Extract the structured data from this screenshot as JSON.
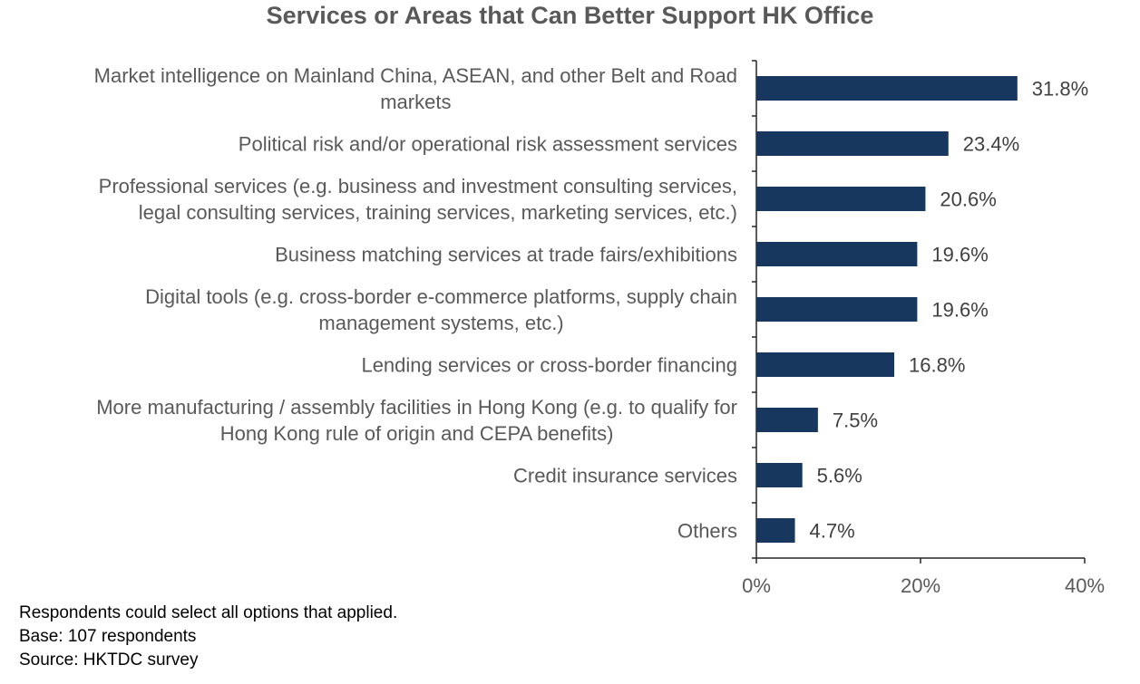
{
  "chart_data": {
    "type": "bar",
    "orientation": "horizontal",
    "title": "Services or Areas that Can Better Support HK Office",
    "categories": [
      [
        "Market intelligence on Mainland China, ASEAN, and other Belt and Road",
        "markets"
      ],
      [
        "Political risk and/or operational risk assessment services"
      ],
      [
        "Professional services (e.g. business and investment consulting services,",
        "legal consulting services, training services, marketing services, etc.)"
      ],
      [
        "Business matching services at trade fairs/exhibitions"
      ],
      [
        "Digital tools (e.g. cross-border e-commerce platforms, supply chain",
        "management systems, etc.)"
      ],
      [
        "Lending services or cross-border financing"
      ],
      [
        "More manufacturing / assembly facilities in Hong Kong (e.g. to qualify for",
        "Hong Kong rule of origin and CEPA benefits)"
      ],
      [
        "Credit insurance services"
      ],
      [
        "Others"
      ]
    ],
    "values": [
      31.8,
      23.4,
      20.6,
      19.6,
      19.6,
      16.8,
      7.5,
      5.6,
      4.7
    ],
    "value_labels": [
      "31.8%",
      "23.4%",
      "20.6%",
      "19.6%",
      "19.6%",
      "16.8%",
      "7.5%",
      "5.6%",
      "4.7%"
    ],
    "xlim": [
      0,
      40
    ],
    "xticks": [
      0,
      20,
      40
    ],
    "xtick_labels": [
      "0%",
      "20%",
      "40%"
    ],
    "xlabel": "",
    "ylabel": "",
    "grid": false,
    "legend": "none",
    "bar_color": "#17375E",
    "axis_color": "#262626"
  },
  "notes": [
    "Respondents could select all options that applied.",
    "Base: 107 respondents",
    "Source: HKTDC survey"
  ]
}
